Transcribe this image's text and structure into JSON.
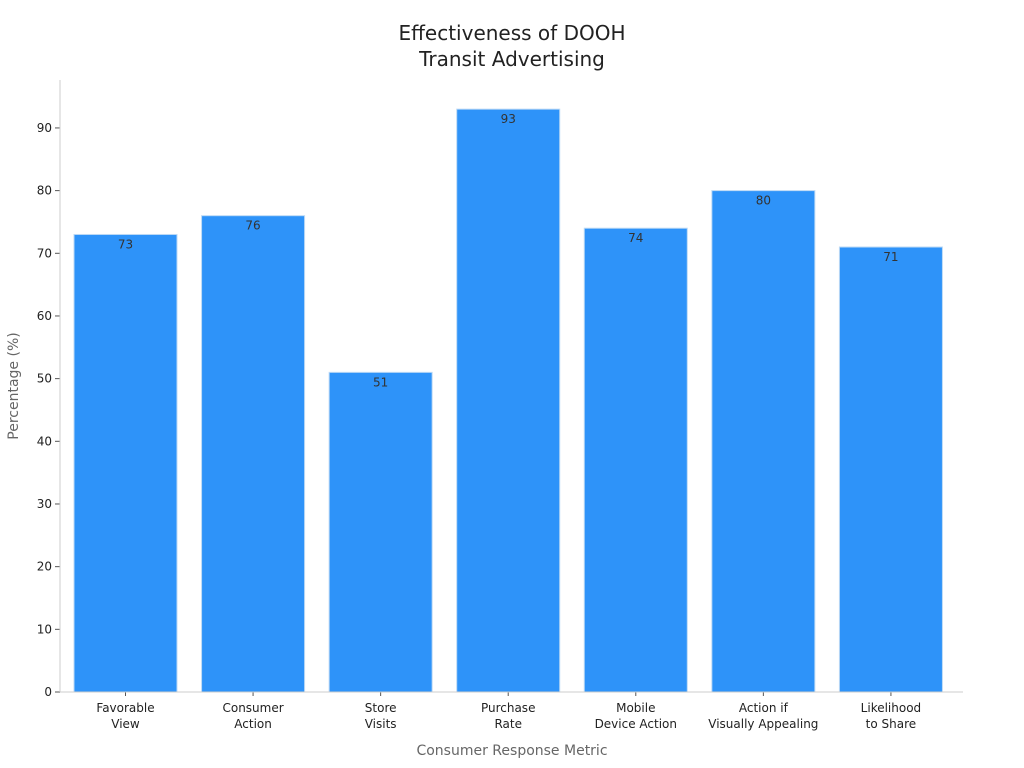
{
  "chart_data": {
    "type": "bar",
    "title": [
      "Effectiveness of DOOH",
      "Transit Advertising"
    ],
    "xlabel": "Consumer Response Metric",
    "ylabel": "Percentage (%)",
    "categories": [
      [
        "Favorable",
        "View"
      ],
      [
        "Consumer",
        "Action"
      ],
      [
        "Store",
        "Visits"
      ],
      [
        "Purchase",
        "Rate"
      ],
      [
        "Mobile",
        "Device Action"
      ],
      [
        "Action if",
        "Visually Appealing"
      ],
      [
        "Likelihood",
        "to Share"
      ]
    ],
    "values": [
      73,
      76,
      51,
      93,
      74,
      80,
      71
    ],
    "data_labels": [
      "73",
      "76",
      "51",
      "93",
      "74",
      "80",
      "71"
    ],
    "yticks": [
      0,
      10,
      20,
      30,
      40,
      50,
      60,
      70,
      80,
      90
    ],
    "ytick_labels": [
      "0",
      "10",
      "20",
      "30",
      "40",
      "50",
      "60",
      "70",
      "80",
      "90"
    ],
    "ylim": [
      0,
      97.65
    ],
    "grid": false,
    "legend": "none",
    "bar_color": "#2e93f9",
    "bar_edge_color": "#bcd9f5",
    "axis_color": "#cccccc"
  }
}
